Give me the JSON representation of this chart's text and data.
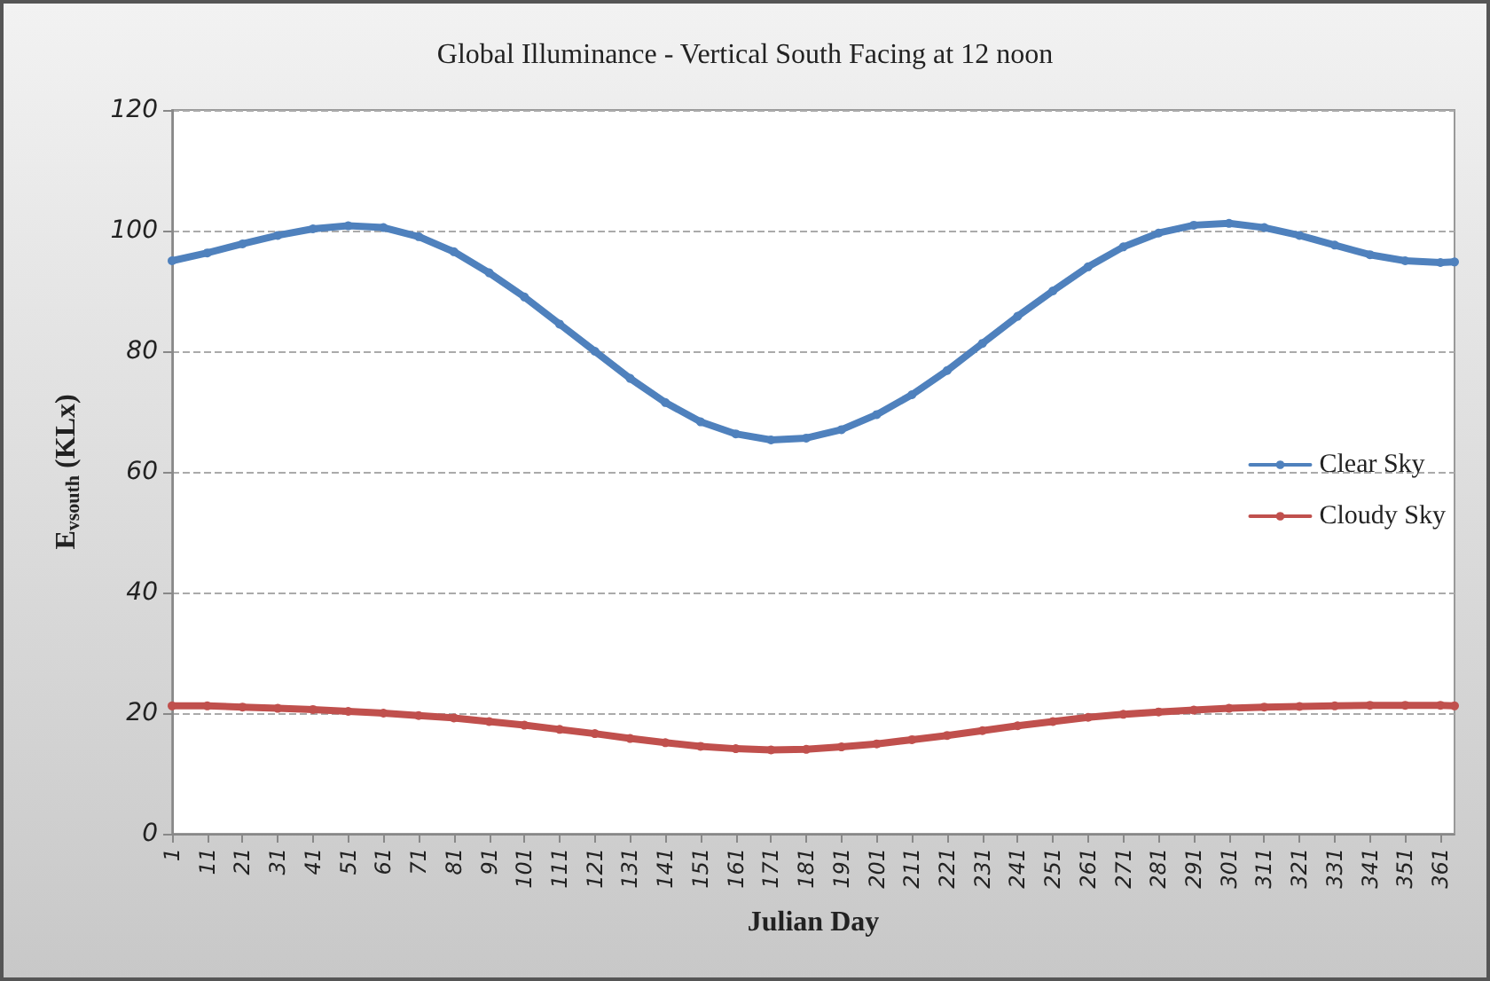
{
  "chart_data": {
    "type": "line",
    "title": "Global Illuminance - Vertical South Facing at 12 noon",
    "xlabel": "Julian Day",
    "ylabel": "E$_{vsouth}$ (KLx)",
    "x": [
      1,
      11,
      21,
      31,
      41,
      51,
      61,
      71,
      81,
      91,
      101,
      111,
      121,
      131,
      141,
      151,
      161,
      171,
      181,
      191,
      201,
      211,
      221,
      231,
      241,
      251,
      261,
      271,
      281,
      291,
      301,
      311,
      321,
      331,
      341,
      351,
      361,
      365
    ],
    "series": [
      {
        "name": "Clear Sky",
        "color": "#4f81bd",
        "values": [
          95.0,
          96.3,
          97.8,
          99.2,
          100.3,
          100.8,
          100.5,
          99.0,
          96.5,
          93.0,
          89.0,
          84.5,
          80.0,
          75.5,
          71.5,
          68.3,
          66.3,
          65.3,
          65.6,
          67.0,
          69.5,
          72.8,
          76.8,
          81.3,
          85.8,
          90.0,
          94.0,
          97.3,
          99.6,
          100.9,
          101.2,
          100.5,
          99.2,
          97.6,
          96.0,
          95.0,
          94.7,
          94.8
        ]
      },
      {
        "name": "Cloudy Sky",
        "color": "#c0504d",
        "values": [
          21.2,
          21.2,
          21.0,
          20.8,
          20.6,
          20.3,
          20.0,
          19.6,
          19.2,
          18.6,
          18.0,
          17.3,
          16.6,
          15.8,
          15.1,
          14.5,
          14.1,
          13.9,
          14.0,
          14.4,
          14.9,
          15.6,
          16.3,
          17.1,
          17.9,
          18.6,
          19.3,
          19.8,
          20.2,
          20.5,
          20.8,
          21.0,
          21.1,
          21.2,
          21.3,
          21.3,
          21.3,
          21.2
        ]
      }
    ],
    "xlim": [
      1,
      365
    ],
    "xticks": [
      1,
      11,
      21,
      31,
      41,
      51,
      61,
      71,
      81,
      91,
      101,
      111,
      121,
      131,
      141,
      151,
      161,
      171,
      181,
      191,
      201,
      211,
      221,
      231,
      241,
      251,
      261,
      271,
      281,
      291,
      301,
      311,
      321,
      331,
      341,
      351,
      361
    ],
    "ylim": [
      0,
      120
    ],
    "yticks": [
      0,
      20,
      40,
      60,
      80,
      100,
      120
    ],
    "grid": "y",
    "legend": "right",
    "marker": "circle",
    "line_style": "solid"
  }
}
